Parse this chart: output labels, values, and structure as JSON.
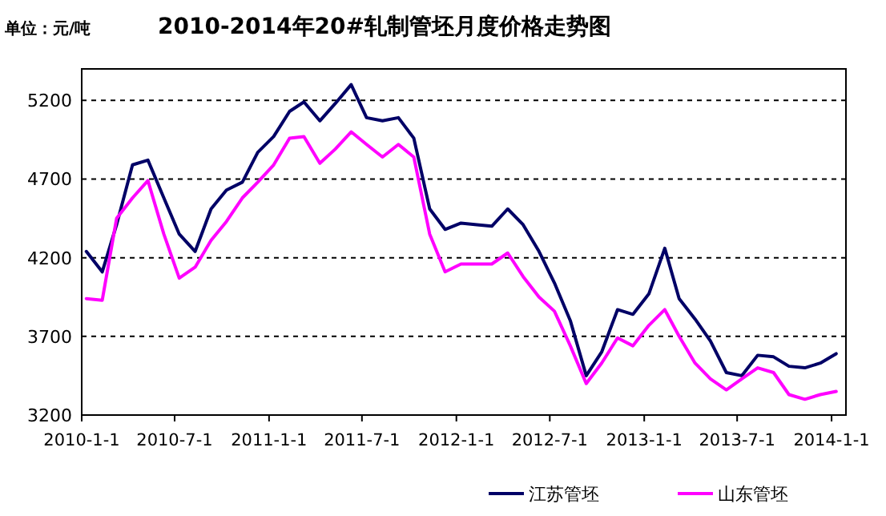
{
  "chart_data": {
    "type": "line",
    "title": "2010-2014年20#轧制管坯月度价格走势图",
    "annotations": [
      "单位：元/吨"
    ],
    "x": [
      "2010-01-10",
      "2010-02-10",
      "2010-03-10",
      "2010-04-10",
      "2010-05-10",
      "2010-06-10",
      "2010-07-10",
      "2010-08-10",
      "2010-09-10",
      "2010-10-10",
      "2010-11-10",
      "2010-12-10",
      "2011-01-10",
      "2011-02-10",
      "2011-03-10",
      "2011-04-10",
      "2011-05-10",
      "2011-06-10",
      "2011-07-10",
      "2011-08-10",
      "2011-09-10",
      "2011-10-10",
      "2011-11-10",
      "2011-12-10",
      "2012-01-10",
      "2012-02-10",
      "2012-03-10",
      "2012-04-10",
      "2012-05-10",
      "2012-06-10",
      "2012-07-10",
      "2012-08-10",
      "2012-09-10",
      "2012-10-10",
      "2012-11-10",
      "2012-12-10",
      "2013-01-10",
      "2013-02-10",
      "2013-03-10",
      "2013-04-10",
      "2013-05-10",
      "2013-06-10",
      "2013-07-10",
      "2013-08-10",
      "2013-09-10",
      "2013-10-10",
      "2013-11-10",
      "2013-12-10",
      "2014-01-10"
    ],
    "series": [
      {
        "name": "江苏管坯",
        "color": "#000066",
        "values": [
          4240,
          4110,
          4410,
          4790,
          4820,
          4580,
          4350,
          4240,
          4510,
          4630,
          4680,
          4870,
          4970,
          5130,
          5190,
          5070,
          5180,
          5300,
          5090,
          5070,
          5090,
          4960,
          4510,
          4380,
          4420,
          4410,
          4400,
          4510,
          4410,
          4240,
          4040,
          3800,
          3450,
          3600,
          3870,
          3840,
          3970,
          4260,
          3940,
          3810,
          3670,
          3470,
          3450,
          3580,
          3570,
          3510,
          3500,
          3530,
          3590
        ]
      },
      {
        "name": "山东管坯",
        "color": "#ff00ff",
        "values": [
          3940,
          3930,
          4450,
          4580,
          4690,
          4350,
          4070,
          4140,
          4310,
          4430,
          4580,
          4680,
          4790,
          4960,
          4970,
          4800,
          4890,
          5000,
          4920,
          4840,
          4920,
          4840,
          4350,
          4110,
          4160,
          4160,
          4160,
          4230,
          4080,
          3950,
          3860,
          3640,
          3400,
          3530,
          3690,
          3640,
          3770,
          3870,
          3700,
          3530,
          3430,
          3360,
          3430,
          3500,
          3470,
          3330,
          3300,
          3330,
          3350
        ]
      }
    ],
    "xlim": [
      "2010-01-01",
      "2014-01-29"
    ],
    "xticks": [
      {
        "value": "2010-01-01",
        "label": "2010-1-1"
      },
      {
        "value": "2010-07-01",
        "label": "2010-7-1"
      },
      {
        "value": "2011-01-01",
        "label": "2011-1-1"
      },
      {
        "value": "2011-07-01",
        "label": "2011-7-1"
      },
      {
        "value": "2012-01-01",
        "label": "2012-1-1"
      },
      {
        "value": "2012-07-01",
        "label": "2012-7-1"
      },
      {
        "value": "2013-01-01",
        "label": "2013-1-1"
      },
      {
        "value": "2013-07-01",
        "label": "2013-7-1"
      },
      {
        "value": "2014-01-01",
        "label": "2014-1-1"
      }
    ],
    "ylim": [
      3200,
      5400
    ],
    "yticks": [
      3200,
      3700,
      4200,
      4700,
      5200
    ],
    "grid": "y",
    "legend": "bottom",
    "marker": "none",
    "line_style": "solid"
  }
}
